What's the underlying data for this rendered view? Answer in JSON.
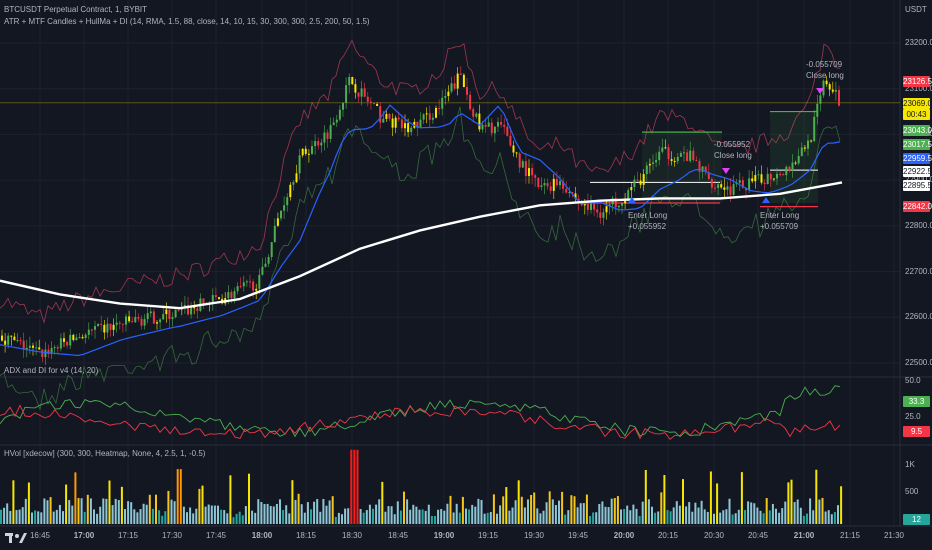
{
  "chart_header": {
    "symbol": "BTCUSDT Perpetual Contract, 1, BYBIT",
    "study1": "ATR + MTF Candles + HullMa + DI (14, RMA, 1.5, 88, close, 14, 10, 15, 30, 300, 300, 2.5, 200, 50, 1.5)",
    "study2": "ADX and DI for v4 (14, 20)",
    "study3": "HVol [xdecow] (300, 300, Heatmap, None, 4, 2.5, 1, -0.5)"
  },
  "currency": "USDT",
  "price_axis_labels": [
    "23200.0",
    "23100.0",
    "23000.0",
    "22900.0",
    "22800.0",
    "22700.0",
    "22600.0",
    "22500.0"
  ],
  "price_tags": [
    {
      "text": "23126.5",
      "bg": "#f23645",
      "fg": "#ffffff"
    },
    {
      "text": "23069.0",
      "bg": "#f7e600",
      "fg": "#131722"
    },
    {
      "text": "00:43",
      "bg": "#f7e600",
      "fg": "#131722"
    },
    {
      "text": "23043.0",
      "bg": "#4caf50",
      "fg": "#ffffff"
    },
    {
      "text": "23017.5",
      "bg": "#4caf50",
      "fg": "#ffffff"
    },
    {
      "text": "22959.5",
      "bg": "#2962ff",
      "fg": "#ffffff"
    },
    {
      "text": "22922.5",
      "bg": "#ffffff",
      "fg": "#131722"
    },
    {
      "text": "22895.5",
      "bg": "#ffffff",
      "fg": "#131722"
    },
    {
      "text": "22842.0",
      "bg": "#f23645",
      "fg": "#ffffff"
    }
  ],
  "adx_axis": [
    "50.0",
    "25.0"
  ],
  "adx_tags": [
    {
      "text": "33.3",
      "bg": "#4caf50",
      "fg": "#ffffff"
    },
    {
      "text": "9.5",
      "bg": "#f23645",
      "fg": "#ffffff"
    }
  ],
  "vol_axis": [
    "1K",
    "500"
  ],
  "vol_tag": {
    "text": "12",
    "bg": "#26a69a",
    "fg": "#ffffff"
  },
  "time_labels": [
    "16:45",
    "17:00",
    "17:15",
    "17:30",
    "17:45",
    "18:00",
    "18:15",
    "18:30",
    "18:45",
    "19:00",
    "19:15",
    "19:30",
    "19:45",
    "20:00",
    "20:15",
    "20:30",
    "20:45",
    "21:00",
    "21:15",
    "21:30"
  ],
  "trade_labels": {
    "enter1_a": "Enter Long",
    "enter1_b": "+0.055952",
    "close1_a": "-0.055952",
    "close1_b": "Close long",
    "enter2_a": "Enter Long",
    "enter2_b": "+0.055709",
    "close2_a": "-0.055709",
    "close2_b": "Close long"
  },
  "colors": {
    "background": "#131722",
    "up": "#4caf50",
    "down": "#f23645",
    "yellow": "#f7e600",
    "ma_blue": "#2962ff",
    "ma_white": "#ffffff",
    "band_red": "#c2405a",
    "band_green": "#3e7d42"
  },
  "icons": {
    "logo": "tradingview-logo-icon"
  }
}
